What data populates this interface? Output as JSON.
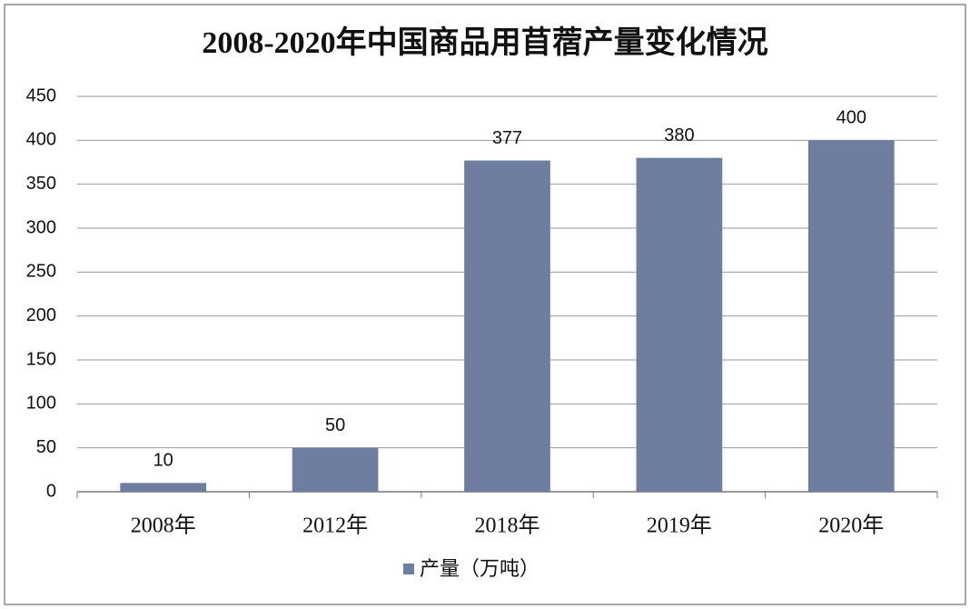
{
  "chart_data": {
    "type": "bar",
    "title": "2008-2020年中国商品用苜蓿产量变化情况",
    "categories": [
      "2008年",
      "2012年",
      "2018年",
      "2019年",
      "2020年"
    ],
    "series": [
      {
        "name": "产量（万吨）",
        "color": "#6f7ea0",
        "values": [
          10,
          50,
          377,
          380,
          400
        ]
      }
    ],
    "ylim": [
      0,
      450
    ],
    "yticks": [
      0,
      50,
      100,
      150,
      200,
      250,
      300,
      350,
      400,
      450
    ],
    "grid": true,
    "legend": "bottom"
  }
}
